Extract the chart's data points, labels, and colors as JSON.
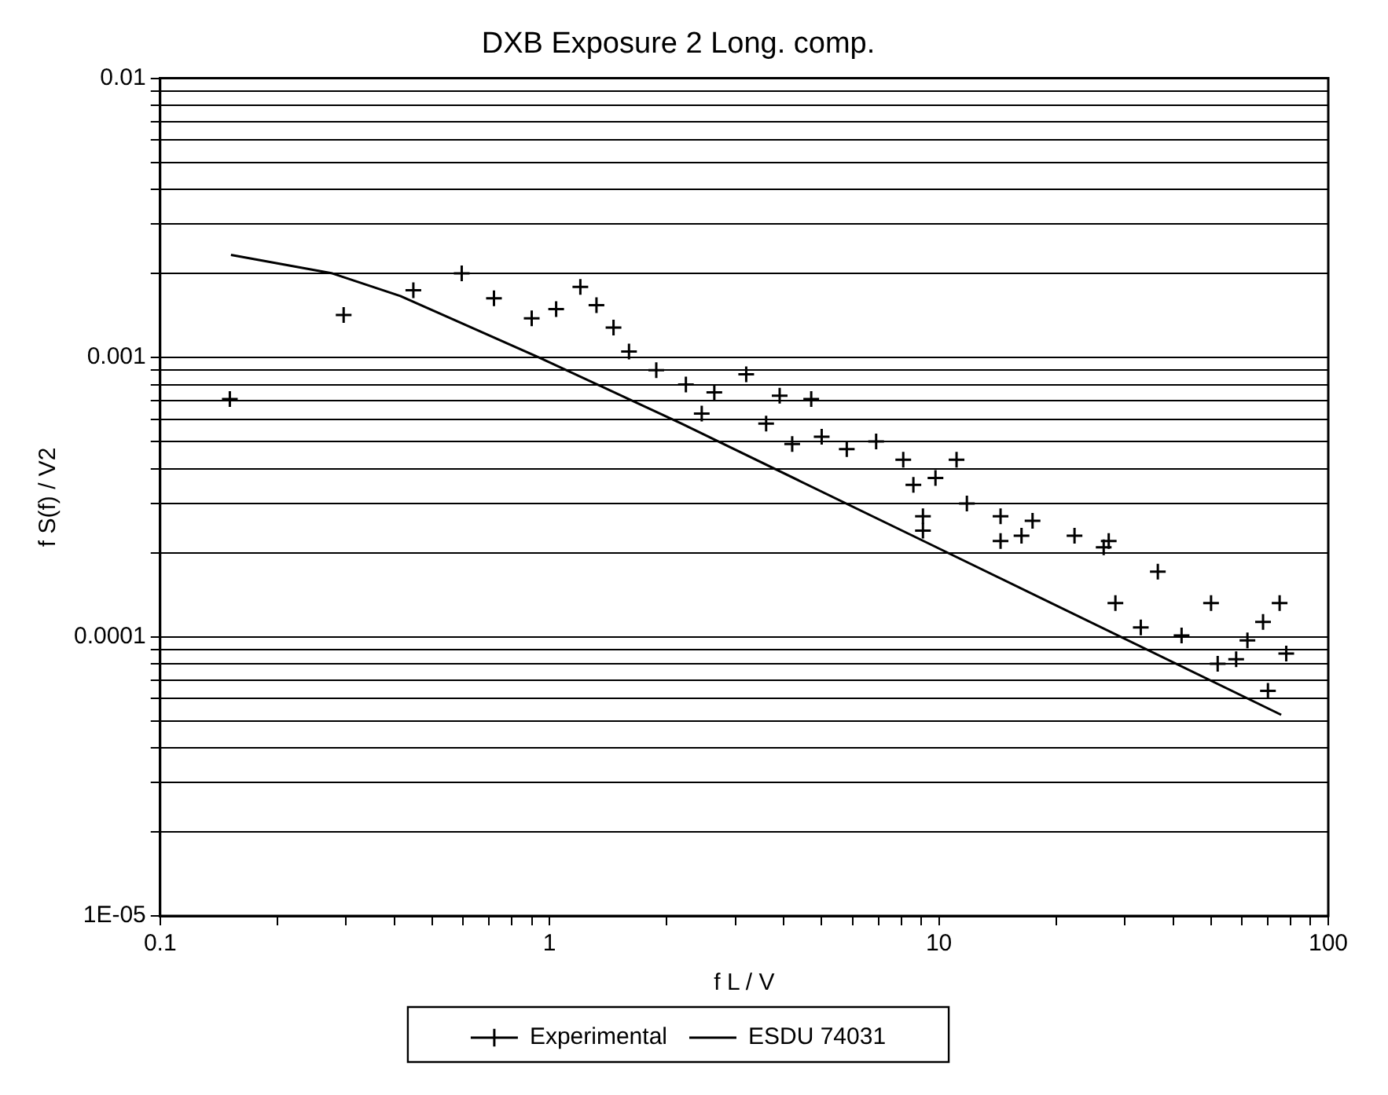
{
  "chart_data": {
    "type": "scatter",
    "title": "DXB Exposure 2 Long. comp.",
    "xlabel": "f L / V",
    "ylabel": "f S(f) / V2",
    "log": "xy",
    "grid": "y",
    "legend": "bottom",
    "marker": "cross",
    "xlim": [
      0.1,
      100
    ],
    "ylim": [
      1e-05,
      0.01
    ],
    "xticks": [
      0.1,
      {
        "value": 0.2,
        "label": null
      },
      {
        "value": 0.3,
        "label": null
      },
      {
        "value": 0.4,
        "label": null
      },
      {
        "value": 0.5,
        "label": null
      },
      {
        "value": 0.6,
        "label": null
      },
      {
        "value": 0.7,
        "label": null
      },
      {
        "value": 0.8,
        "label": null
      },
      {
        "value": 0.9,
        "label": null
      },
      1,
      {
        "value": 2,
        "label": null
      },
      {
        "value": 3,
        "label": null
      },
      {
        "value": 4,
        "label": null
      },
      {
        "value": 5,
        "label": null
      },
      {
        "value": 6,
        "label": null
      },
      {
        "value": 7,
        "label": null
      },
      {
        "value": 8,
        "label": null
      },
      {
        "value": 9,
        "label": null
      },
      10,
      {
        "value": 20,
        "label": null
      },
      {
        "value": 30,
        "label": null
      },
      {
        "value": 40,
        "label": null
      },
      {
        "value": 50,
        "label": null
      },
      {
        "value": 60,
        "label": null
      },
      {
        "value": 70,
        "label": null
      },
      {
        "value": 80,
        "label": null
      },
      {
        "value": 90,
        "label": null
      },
      100
    ],
    "yticks": [
      {
        "value": 1e-05,
        "label": "1E-05"
      },
      {
        "value": 2e-05,
        "label": null
      },
      {
        "value": 3e-05,
        "label": null
      },
      {
        "value": 4e-05,
        "label": null
      },
      {
        "value": 5e-05,
        "label": null
      },
      {
        "value": 6e-05,
        "label": null
      },
      {
        "value": 7e-05,
        "label": null
      },
      {
        "value": 8e-05,
        "label": null
      },
      {
        "value": 9e-05,
        "label": null
      },
      0.0001,
      {
        "value": 0.0002,
        "label": null
      },
      {
        "value": 0.0003,
        "label": null
      },
      {
        "value": 0.0004,
        "label": null
      },
      {
        "value": 0.0005,
        "label": null
      },
      {
        "value": 0.0006,
        "label": null
      },
      {
        "value": 0.0007,
        "label": null
      },
      {
        "value": 0.0008,
        "label": null
      },
      {
        "value": 0.0009,
        "label": null
      },
      0.001,
      {
        "value": 0.002,
        "label": null
      },
      {
        "value": 0.003,
        "label": null
      },
      {
        "value": 0.004,
        "label": null
      },
      {
        "value": 0.005,
        "label": null
      },
      {
        "value": 0.006,
        "label": null
      },
      {
        "value": 0.007,
        "label": null
      },
      {
        "value": 0.008,
        "label": null
      },
      {
        "value": 0.009,
        "label": null
      },
      0.01
    ],
    "series": [
      {
        "name": "Experimental",
        "color": "#000000",
        "x": [
          0.151,
          0.296,
          0.447,
          0.595,
          0.72,
          0.9,
          1.04,
          1.2,
          1.32,
          1.46,
          1.6,
          1.88,
          2.24,
          2.46,
          2.65,
          3.2,
          3.9,
          4.7,
          3.6,
          5.0,
          4.2,
          5.8,
          6.9,
          8.1,
          8.6,
          9.8,
          11.1,
          9.1,
          11.8,
          14.4,
          17.4,
          22.3,
          27.3,
          16.3,
          28.4,
          33,
          26.5,
          36.5,
          50,
          58,
          70,
          75,
          78,
          68,
          42,
          52,
          62,
          9.1,
          14.4
        ],
        "values": [
          0.00071,
          0.00142,
          0.00174,
          0.002,
          0.00163,
          0.00138,
          0.00149,
          0.00179,
          0.00154,
          0.00128,
          0.00105,
          0.0009,
          0.0008,
          0.00063,
          0.00075,
          0.00087,
          0.00073,
          0.00071,
          0.00058,
          0.00052,
          0.00049,
          0.00047,
          0.0005,
          0.00043,
          0.00035,
          0.00037,
          0.00043,
          0.00027,
          0.0003,
          0.00027,
          0.00026,
          0.00023,
          0.00022,
          0.00023,
          0.000132,
          0.000108,
          0.000209,
          0.000171,
          0.000132,
          8.3e-05,
          6.4e-05,
          0.000132,
          8.7e-05,
          0.000113,
          0.000101,
          8e-05,
          9.7e-05,
          0.00024,
          0.00022
        ]
      },
      {
        "name": "ESDU 74031",
        "type": "line",
        "color": "#000000",
        "marker": "none",
        "x": [
          0.152,
          0.277,
          0.414,
          0.94,
          2.18,
          9.2,
          75.7
        ],
        "values": [
          0.00233,
          0.002,
          0.00166,
          0.001,
          0.00058,
          0.000219,
          5.25e-05
        ]
      }
    ]
  }
}
